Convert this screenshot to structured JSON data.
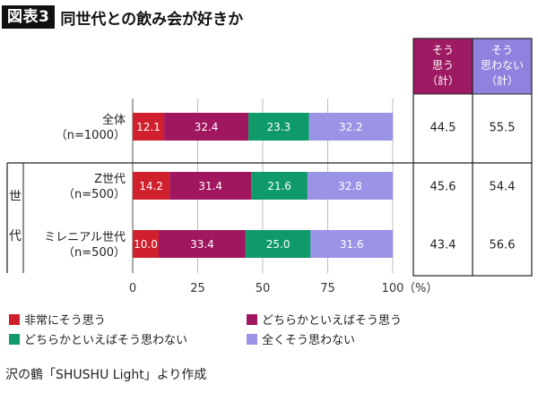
{
  "header": {
    "badge": "図表3",
    "title": "同世代との飲み会が好きか"
  },
  "summary_headers": [
    {
      "lines": [
        "そう",
        "思う",
        "（計）"
      ],
      "color": "#9e1a62"
    },
    {
      "lines": [
        "そう",
        "思わない",
        "（計）"
      ],
      "color": "#8f82de"
    }
  ],
  "group_label": [
    "世",
    "代"
  ],
  "legend": [
    {
      "label": "非常にそう思う",
      "color": "#d0202e"
    },
    {
      "label": "どちらかといえばそう思う",
      "color": "#a0165f"
    },
    {
      "label": "どちらかといえばそう思わない",
      "color": "#0f9a6a"
    },
    {
      "label": "全くそう思わない",
      "color": "#9a93e6"
    }
  ],
  "source": "沢の鶴「SHUSHU Light」より作成",
  "chart_data": {
    "type": "bar",
    "stacked": true,
    "orientation": "horizontal",
    "title": "同世代との飲み会が好きか",
    "xlim": [
      0,
      100
    ],
    "x_ticks": [
      "0",
      "25",
      "50",
      "75",
      "100"
    ],
    "x_unit": "（%）",
    "categories": [
      [
        "全体",
        "（n=1000）"
      ],
      [
        "Z世代",
        "（n=500）"
      ],
      [
        "ミレニアル世代",
        "（n=500）"
      ]
    ],
    "series": [
      {
        "name": "非常にそう思う",
        "color": "#d0202e",
        "values": [
          12.1,
          14.2,
          10.0
        ]
      },
      {
        "name": "どちらかといえばそう思う",
        "color": "#a0165f",
        "values": [
          32.4,
          31.4,
          33.4
        ]
      },
      {
        "name": "どちらかといえばそう思わない",
        "color": "#0f9a6a",
        "values": [
          23.3,
          21.6,
          25.0
        ]
      },
      {
        "name": "全くそう思わない",
        "color": "#9a93e6",
        "values": [
          32.2,
          32.8,
          31.6
        ]
      }
    ],
    "summary": {
      "agree_total": [
        "44.5",
        "45.6",
        "43.4"
      ],
      "disagree_total": [
        "55.5",
        "54.4",
        "56.6"
      ]
    }
  }
}
